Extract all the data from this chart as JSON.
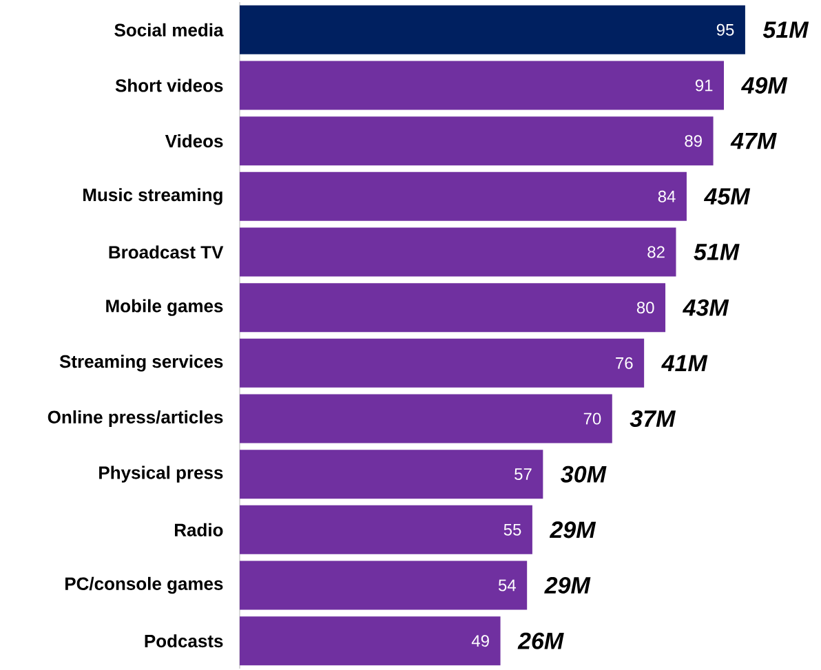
{
  "chart_data": {
    "type": "bar",
    "orientation": "horizontal",
    "categories": [
      "Social media",
      "Short videos",
      "Videos",
      "Music streaming",
      "Broadcast TV",
      "Mobile games",
      "Streaming services",
      "Online press/articles",
      "Physical press",
      "Radio",
      "PC/console games",
      "Podcasts"
    ],
    "values": [
      95,
      91,
      89,
      84,
      82,
      80,
      76,
      70,
      57,
      55,
      54,
      49
    ],
    "colors": [
      "#002060",
      "#7030a0",
      "#7030a0",
      "#7030a0",
      "#7030a0",
      "#7030a0",
      "#7030a0",
      "#7030a0",
      "#7030a0",
      "#7030a0",
      "#7030a0",
      "#7030a0"
    ],
    "data_labels": true,
    "annotations": [
      {
        "text": "51M",
        "x": 95,
        "y": "Social media"
      },
      {
        "text": "49M",
        "x": 91,
        "y": "Short videos"
      },
      {
        "text": "47M",
        "x": 89,
        "y": "Videos"
      },
      {
        "text": "45M",
        "x": 84,
        "y": "Music streaming"
      },
      {
        "text": "51M",
        "x": 82,
        "y": "Broadcast TV"
      },
      {
        "text": "43M",
        "x": 80,
        "y": "Mobile games"
      },
      {
        "text": "41M",
        "x": 76,
        "y": "Streaming services"
      },
      {
        "text": "37M",
        "x": 70,
        "y": "Online press/articles"
      },
      {
        "text": "30M",
        "x": 57,
        "y": "Physical press"
      },
      {
        "text": "29M",
        "x": 55,
        "y": "Radio"
      },
      {
        "text": "29M",
        "x": 54,
        "y": "PC/console games"
      },
      {
        "text": "26M",
        "x": 49,
        "y": "Podcasts"
      }
    ]
  }
}
